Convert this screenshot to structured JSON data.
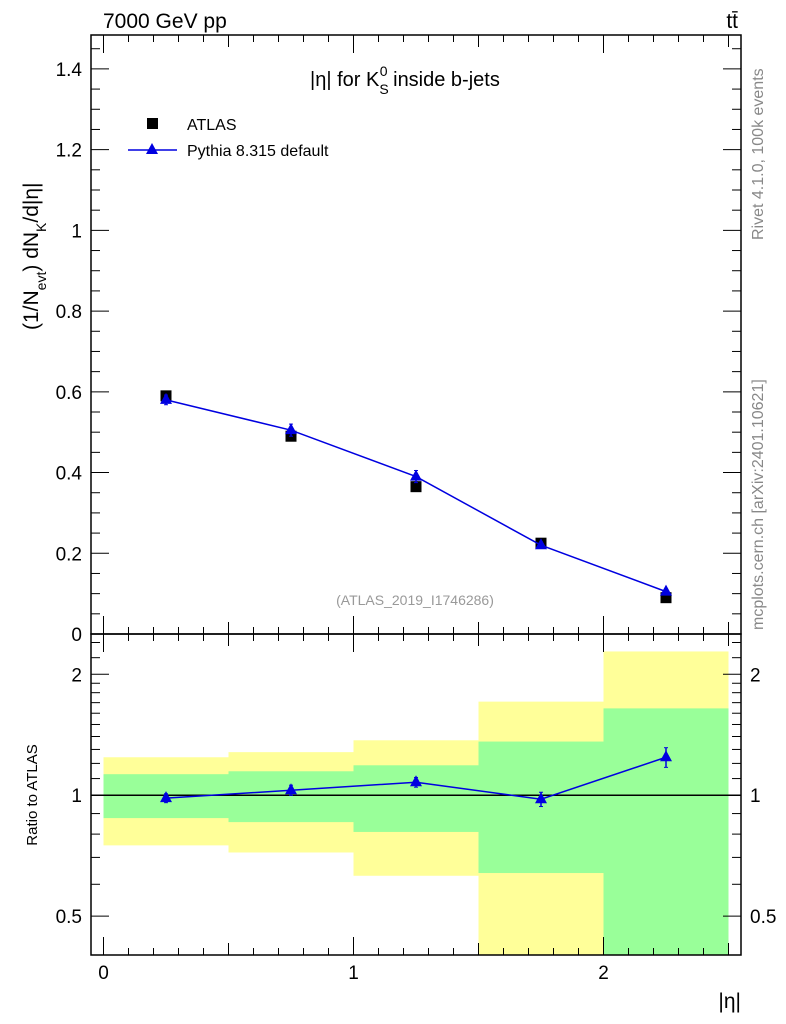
{
  "header": {
    "left": "7000 GeV pp",
    "right": "tt̄"
  },
  "side_labels": {
    "top": "Rivet 4.1.0,  100k events",
    "bottom": "mcplots.cern.ch [arXiv:2401.10621]"
  },
  "chart_data": [
    {
      "type": "scatter",
      "title": "|η| for K_S^0 inside b-jets",
      "title_parts": {
        "pre": "|η| for K",
        "sup": "0",
        "sub": "S",
        "post": " inside b-jets"
      },
      "ylabel_parts": {
        "a": "(1/N",
        "a_sub": "evt",
        "b": ") dN",
        "b_sub": "K",
        "c": "/d|η|"
      },
      "xlim": [
        -0.05,
        2.55
      ],
      "ylim": [
        0,
        1.484
      ],
      "yticks": [
        0,
        0.2,
        0.4,
        0.6,
        0.8,
        1,
        1.2,
        1.4
      ],
      "ytick_labels": [
        "0",
        "0.2",
        "0.4",
        "0.6",
        "0.8",
        "1",
        "1.2",
        "1.4"
      ],
      "watermark": "(ATLAS_2019_I1746286)",
      "legend_position": "top-left",
      "series": [
        {
          "name": "ATLAS",
          "marker": "square",
          "color": "#000000",
          "x": [
            0.25,
            0.75,
            1.25,
            1.75,
            2.25
          ],
          "y": [
            0.59,
            0.49,
            0.365,
            0.225,
            0.09
          ],
          "yerr": [
            0.01,
            0.01,
            0.01,
            0.008,
            0.005
          ]
        },
        {
          "name": "Pythia 8.315 default",
          "marker": "triangle",
          "color": "#0000e0",
          "x": [
            0.25,
            0.75,
            1.25,
            1.75,
            2.25
          ],
          "y": [
            0.58,
            0.505,
            0.39,
            0.22,
            0.105
          ],
          "yerr": [
            0.012,
            0.015,
            0.015,
            0.008,
            0.006
          ]
        }
      ]
    },
    {
      "type": "scatter",
      "ylabel": "Ratio to ATLAS",
      "xlabel": "|η|",
      "yscale": "log",
      "xlim": [
        -0.05,
        2.55
      ],
      "ylim": [
        0.4,
        2.52
      ],
      "xticks": [
        0,
        1,
        2
      ],
      "xtick_labels": [
        "0",
        "1",
        "2"
      ],
      "yticks": [
        0.5,
        1,
        2
      ],
      "ytick_labels": [
        "0.5",
        "1",
        "2"
      ],
      "bins": [
        [
          0,
          0.5
        ],
        [
          0.5,
          1
        ],
        [
          1,
          1.5
        ],
        [
          1.5,
          2
        ],
        [
          2,
          2.5
        ]
      ],
      "band_green": {
        "low": [
          0.877,
          0.857,
          0.81,
          0.64,
          0.4
        ],
        "high": [
          1.128,
          1.147,
          1.187,
          1.36,
          1.645
        ]
      },
      "band_yellow": {
        "low": [
          0.75,
          0.72,
          0.63,
          0.4,
          0.4
        ],
        "high": [
          1.243,
          1.28,
          1.37,
          1.71,
          2.28
        ]
      },
      "colors": {
        "green": "#99ff99",
        "yellow": "#ffff99"
      },
      "series": [
        {
          "name": "Pythia 8.315 default",
          "color": "#0000e0",
          "x": [
            0.25,
            0.75,
            1.25,
            1.75,
            2.25
          ],
          "y": [
            0.983,
            1.029,
            1.077,
            0.977,
            1.243
          ],
          "yerr": [
            0.025,
            0.03,
            0.03,
            0.04,
            0.07
          ]
        }
      ]
    }
  ]
}
